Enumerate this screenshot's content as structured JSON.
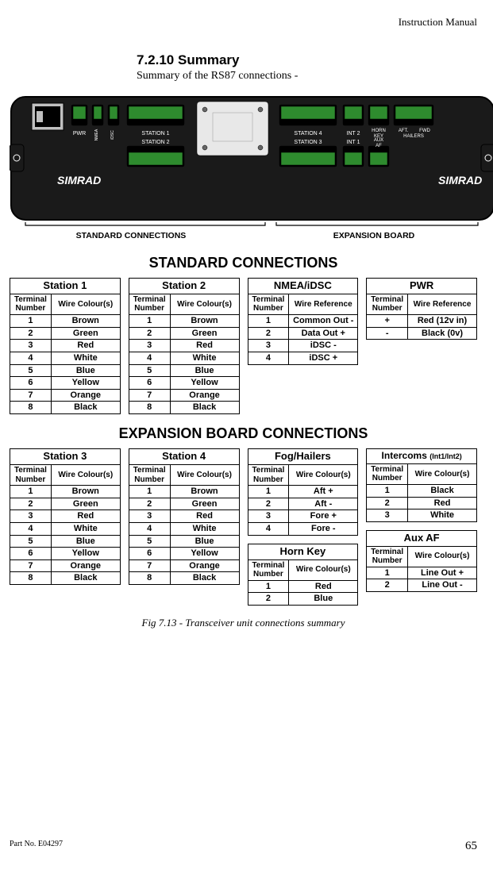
{
  "header": {
    "doc_type": "Instruction Manual"
  },
  "section": {
    "num_title": "7.2.10  Summary",
    "subtitle": "Summary of the RS87 connections -"
  },
  "device": {
    "brand": "SIMRAD",
    "labels_top": [
      "PWR",
      "NMEA",
      "iDSC",
      "STATION 1",
      "STATION 4",
      "INT 2",
      "HORN KEY",
      "AFT. HAILERS",
      "FWD"
    ],
    "labels_bot": [
      "STATION 2",
      "STATION 3",
      "INT 1",
      "AUX AF"
    ],
    "bg": "#1a1a1a",
    "panel": "#000000",
    "text": "#ffffff",
    "terminal_fill": "#2e8b2e"
  },
  "brackets": {
    "left": "STANDARD CONNECTIONS",
    "right": "EXPANSION BOARD"
  },
  "titles": {
    "std": "STANDARD CONNECTIONS",
    "exp": "EXPANSION BOARD CONNECTIONS"
  },
  "col_hdr": {
    "tn": "Terminal Number",
    "wc": "Wire Colour(s)",
    "wr": "Wire Reference"
  },
  "station_colors": [
    [
      "1",
      "Brown"
    ],
    [
      "2",
      "Green"
    ],
    [
      "3",
      "Red"
    ],
    [
      "4",
      "White"
    ],
    [
      "5",
      "Blue"
    ],
    [
      "6",
      "Yellow"
    ],
    [
      "7",
      "Orange"
    ],
    [
      "8",
      "Black"
    ]
  ],
  "std": {
    "t1": "Station 1",
    "t2": "Station 2",
    "t3": "NMEA/iDSC",
    "t4": "PWR",
    "nmea": [
      [
        "1",
        "Common Out -"
      ],
      [
        "2",
        "Data Out +"
      ],
      [
        "3",
        "iDSC -"
      ],
      [
        "4",
        "iDSC +"
      ]
    ],
    "pwr": [
      [
        "+",
        "Red (12v in)"
      ],
      [
        "-",
        "Black (0v)"
      ]
    ]
  },
  "exp": {
    "t1": "Station 3",
    "t2": "Station 4",
    "t3": "Fog/Hailers",
    "t4": "Intercoms ",
    "t4_note": "(Int1/Int2)",
    "t5": "Horn Key",
    "t6": "Aux AF",
    "fog": [
      [
        "1",
        "Aft +"
      ],
      [
        "2",
        "Aft -"
      ],
      [
        "3",
        "Fore +"
      ],
      [
        "4",
        "Fore -"
      ]
    ],
    "intercoms": [
      [
        "1",
        "Black"
      ],
      [
        "2",
        "Red"
      ],
      [
        "3",
        "White"
      ]
    ],
    "horn": [
      [
        "1",
        "Red"
      ],
      [
        "2",
        "Blue"
      ]
    ],
    "aux": [
      [
        "1",
        "Line Out +"
      ],
      [
        "2",
        "Line Out -"
      ]
    ]
  },
  "caption": "Fig 7.13 - Transceiver unit connections summary",
  "footer": {
    "part": "Part No. E04297",
    "page": "65"
  }
}
